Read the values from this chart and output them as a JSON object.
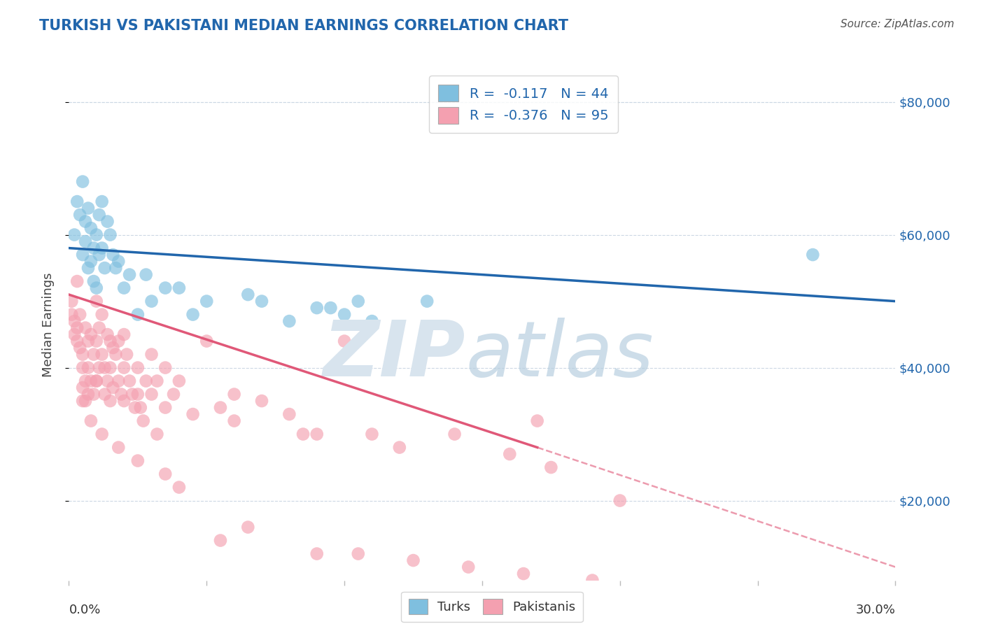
{
  "title": "TURKISH VS PAKISTANI MEDIAN EARNINGS CORRELATION CHART",
  "source": "Source: ZipAtlas.com",
  "ylabel": "Median Earnings",
  "y_ticks": [
    20000,
    40000,
    60000,
    80000
  ],
  "y_tick_labels": [
    "$20,000",
    "$40,000",
    "$60,000",
    "$80,000"
  ],
  "x_min": 0.0,
  "x_max": 30.0,
  "y_min": 8000,
  "y_max": 85000,
  "turks_R": -0.117,
  "turks_N": 44,
  "pakis_R": -0.376,
  "pakis_N": 95,
  "turks_color": "#7fbfdf",
  "pakis_color": "#f4a0b0",
  "turks_line_color": "#2166ac",
  "pakis_line_color": "#e05878",
  "title_color": "#2166ac",
  "legend_text_color": "#2166ac",
  "right_axis_color": "#2166ac",
  "background_color": "#ffffff",
  "turks_line_x0": 0.0,
  "turks_line_y0": 58000,
  "turks_line_x1": 30.0,
  "turks_line_y1": 50000,
  "pakis_line_x0": 0.0,
  "pakis_line_y0": 51000,
  "pakis_line_x1": 17.0,
  "pakis_line_y1": 28000,
  "pakis_dash_x0": 17.0,
  "pakis_dash_y0": 28000,
  "pakis_dash_x1": 30.0,
  "pakis_dash_y1": 10000,
  "turks_scatter_x": [
    0.2,
    0.3,
    0.4,
    0.5,
    0.5,
    0.6,
    0.6,
    0.7,
    0.7,
    0.8,
    0.8,
    0.9,
    0.9,
    1.0,
    1.0,
    1.1,
    1.1,
    1.2,
    1.2,
    1.3,
    1.4,
    1.5,
    1.6,
    1.8,
    2.0,
    2.2,
    2.5,
    3.0,
    3.5,
    4.5,
    5.0,
    7.0,
    8.0,
    9.0,
    10.0,
    11.0,
    13.0,
    27.0,
    9.5,
    10.5,
    6.5,
    4.0,
    2.8,
    1.7
  ],
  "turks_scatter_y": [
    60000,
    65000,
    63000,
    68000,
    57000,
    62000,
    59000,
    64000,
    55000,
    61000,
    56000,
    58000,
    53000,
    60000,
    52000,
    57000,
    63000,
    65000,
    58000,
    55000,
    62000,
    60000,
    57000,
    56000,
    52000,
    54000,
    48000,
    50000,
    52000,
    48000,
    50000,
    50000,
    47000,
    49000,
    48000,
    47000,
    50000,
    57000,
    49000,
    50000,
    51000,
    52000,
    54000,
    55000
  ],
  "pakis_scatter_x": [
    0.1,
    0.1,
    0.2,
    0.2,
    0.3,
    0.3,
    0.3,
    0.4,
    0.4,
    0.5,
    0.5,
    0.5,
    0.6,
    0.6,
    0.7,
    0.7,
    0.7,
    0.8,
    0.8,
    0.9,
    0.9,
    1.0,
    1.0,
    1.0,
    1.1,
    1.1,
    1.2,
    1.2,
    1.3,
    1.3,
    1.4,
    1.4,
    1.5,
    1.5,
    1.5,
    1.6,
    1.6,
    1.7,
    1.8,
    1.8,
    1.9,
    2.0,
    2.0,
    2.1,
    2.2,
    2.3,
    2.4,
    2.5,
    2.5,
    2.6,
    2.7,
    2.8,
    3.0,
    3.0,
    3.2,
    3.5,
    3.5,
    3.8,
    4.0,
    4.5,
    5.0,
    5.5,
    6.0,
    6.0,
    7.0,
    8.0,
    9.0,
    10.0,
    11.0,
    12.0,
    14.0,
    16.0,
    17.0,
    20.0,
    17.5,
    8.5,
    3.2,
    2.0,
    1.0,
    0.5,
    0.6,
    0.8,
    1.2,
    1.8,
    2.5,
    3.5,
    4.0,
    5.5,
    6.5,
    9.0,
    10.5,
    12.5,
    14.5,
    16.5,
    19.0
  ],
  "pakis_scatter_y": [
    50000,
    48000,
    47000,
    45000,
    53000,
    46000,
    44000,
    43000,
    48000,
    40000,
    37000,
    35000,
    46000,
    38000,
    44000,
    40000,
    36000,
    45000,
    38000,
    42000,
    36000,
    50000,
    44000,
    38000,
    46000,
    40000,
    48000,
    42000,
    40000,
    36000,
    45000,
    38000,
    44000,
    40000,
    35000,
    43000,
    37000,
    42000,
    44000,
    38000,
    36000,
    45000,
    40000,
    42000,
    38000,
    36000,
    34000,
    40000,
    36000,
    34000,
    32000,
    38000,
    42000,
    36000,
    38000,
    40000,
    34000,
    36000,
    38000,
    33000,
    44000,
    34000,
    36000,
    32000,
    35000,
    33000,
    30000,
    44000,
    30000,
    28000,
    30000,
    27000,
    32000,
    20000,
    25000,
    30000,
    30000,
    35000,
    38000,
    42000,
    35000,
    32000,
    30000,
    28000,
    26000,
    24000,
    22000,
    14000,
    16000,
    12000,
    12000,
    11000,
    10000,
    9000,
    8000
  ]
}
